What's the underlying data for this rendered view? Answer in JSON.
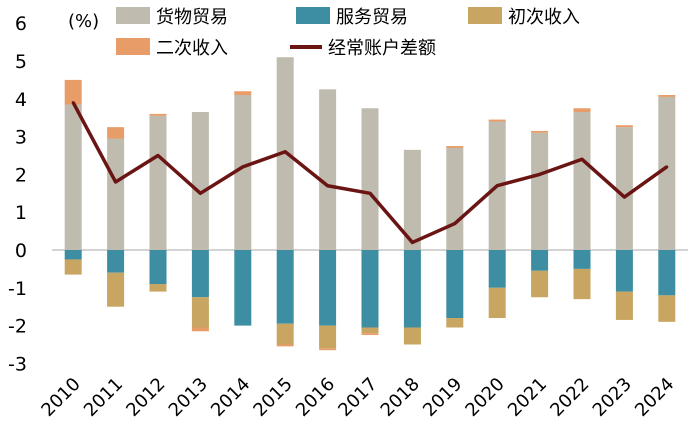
{
  "chart_data": {
    "type": "bar",
    "stacked": true,
    "unit_label": "(%)",
    "title": "",
    "xlabel": "",
    "ylabel": "",
    "ylim": [
      -3,
      6
    ],
    "yticks": [
      -3,
      -2,
      -1,
      0,
      1,
      2,
      3,
      4,
      5,
      6
    ],
    "ytick_labels": [
      "-3",
      "-2",
      "-1",
      "0",
      "1",
      "2",
      "3",
      "4",
      "5",
      "6"
    ],
    "grid": false,
    "legend_position": "top",
    "categories": [
      "2010",
      "2011",
      "2012",
      "2013",
      "2014",
      "2015",
      "2016",
      "2017",
      "2018",
      "2019",
      "2020",
      "2021",
      "2022",
      "2023",
      "2024"
    ],
    "series": [
      {
        "name": "货物贸易",
        "kind": "bar",
        "color": "#bfbbae",
        "values": [
          3.85,
          2.95,
          3.55,
          3.65,
          4.1,
          5.1,
          4.25,
          3.75,
          2.65,
          2.7,
          3.4,
          3.1,
          3.65,
          3.25,
          4.05
        ]
      },
      {
        "name": "服务贸易",
        "kind": "bar",
        "color": "#3e8ea3",
        "values": [
          -0.25,
          -0.6,
          -0.9,
          -1.25,
          -2.0,
          -1.95,
          -2.0,
          -2.05,
          -2.05,
          -1.8,
          -1.0,
          -0.55,
          -0.5,
          -1.1,
          -1.2
        ]
      },
      {
        "name": "初次收入",
        "kind": "bar",
        "color": "#c8a560",
        "values": [
          -0.4,
          -0.9,
          -0.2,
          -0.8,
          0.0,
          -0.55,
          -0.6,
          -0.15,
          -0.45,
          -0.25,
          -0.8,
          -0.7,
          -0.8,
          -0.75,
          -0.7
        ]
      },
      {
        "name": "二次收入",
        "kind": "bar",
        "color": "#e89c68",
        "values": [
          0.65,
          0.3,
          0.05,
          -0.1,
          0.1,
          -0.05,
          -0.05,
          -0.05,
          0.0,
          0.05,
          0.05,
          0.05,
          0.1,
          0.05,
          0.05
        ]
      },
      {
        "name": "经常账户差额",
        "kind": "line",
        "color": "#6b1414",
        "values": [
          3.9,
          1.8,
          2.5,
          1.5,
          2.2,
          2.6,
          1.7,
          1.5,
          0.2,
          0.7,
          1.7,
          2.0,
          2.4,
          1.4,
          2.2
        ]
      }
    ]
  }
}
